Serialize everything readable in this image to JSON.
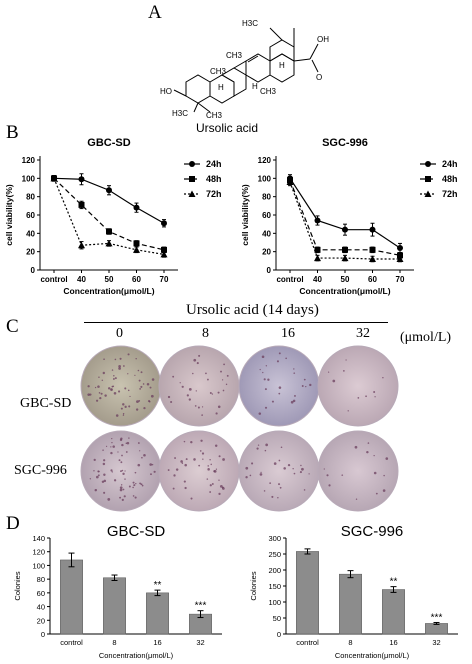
{
  "panels": {
    "a": "A",
    "b": "B",
    "c": "C",
    "d": "D"
  },
  "molecule": {
    "name": "Ursolic acid",
    "atom_labels": [
      "H3C",
      "H",
      "CH3",
      "H",
      "OH",
      "CH3",
      "H",
      "CH3",
      "HO",
      "H3C",
      "CH3",
      "O"
    ]
  },
  "colony_section": {
    "header": "Ursolic acid (14 days)",
    "unit": "(μmol/L)",
    "concentrations": [
      "0",
      "8",
      "16",
      "32"
    ],
    "rows": [
      "GBC-SD",
      "SGC-996"
    ]
  },
  "chart_data": [
    {
      "type": "line",
      "title": "GBC-SD",
      "xlabel": "Concentration(μmol/L)",
      "ylabel": "cell viability(%)",
      "categories": [
        "control",
        "40",
        "50",
        "60",
        "70"
      ],
      "ylim": [
        0,
        120
      ],
      "yticks": [
        "0",
        "20",
        "40",
        "60",
        "80",
        "100",
        "120"
      ],
      "legend": "right",
      "series": [
        {
          "name": "24h",
          "marker": "circle",
          "dash": "solid",
          "values": [
            100,
            99,
            87,
            68,
            51
          ],
          "errors": [
            3,
            6,
            5,
            5,
            4
          ]
        },
        {
          "name": "48h",
          "marker": "square",
          "dash": "dashed",
          "values": [
            100,
            71,
            42,
            29,
            22
          ],
          "errors": [
            3,
            4,
            3,
            3,
            3
          ]
        },
        {
          "name": "72h",
          "marker": "triangle",
          "dash": "dotted",
          "values": [
            100,
            27,
            29,
            22,
            17
          ],
          "errors": [
            3,
            4,
            3,
            3,
            3
          ]
        }
      ]
    },
    {
      "type": "line",
      "title": "SGC-996",
      "xlabel": "Concentration(μmol/L)",
      "ylabel": "cell viability(%)",
      "categories": [
        "control",
        "40",
        "50",
        "60",
        "70"
      ],
      "ylim": [
        0,
        120
      ],
      "yticks": [
        "0",
        "20",
        "40",
        "60",
        "80",
        "100",
        "120"
      ],
      "legend": "right",
      "series": [
        {
          "name": "24h",
          "marker": "circle",
          "dash": "solid",
          "values": [
            100,
            54,
            44,
            44,
            24
          ],
          "errors": [
            4,
            5,
            6,
            7,
            5
          ]
        },
        {
          "name": "48h",
          "marker": "square",
          "dash": "dashed",
          "values": [
            98,
            22,
            22,
            22,
            16
          ],
          "errors": [
            4,
            3,
            3,
            3,
            3
          ]
        },
        {
          "name": "72h",
          "marker": "triangle",
          "dash": "dotted",
          "values": [
            96,
            13,
            13,
            12,
            12
          ],
          "errors": [
            4,
            3,
            3,
            3,
            3
          ]
        }
      ]
    },
    {
      "type": "bar",
      "title": "GBC-SD",
      "xlabel": "Concentration(μmol/L)",
      "ylabel": "Colonies",
      "categories": [
        "control",
        "8",
        "16",
        "32"
      ],
      "values": [
        108,
        82,
        60,
        29
      ],
      "errors": [
        10,
        4,
        4,
        5
      ],
      "significance": [
        "",
        "",
        "**",
        "***"
      ],
      "ylim": [
        0,
        140
      ],
      "yticks": [
        "0",
        "20",
        "40",
        "60",
        "80",
        "100",
        "120",
        "140"
      ]
    },
    {
      "type": "bar",
      "title": "SGC-996",
      "xlabel": "Concentration(μmol/L)",
      "ylabel": "Colonies",
      "categories": [
        "control",
        "8",
        "16",
        "32"
      ],
      "values": [
        258,
        187,
        139,
        33
      ],
      "errors": [
        8,
        11,
        9,
        3
      ],
      "significance": [
        "",
        "",
        "**",
        "***"
      ],
      "ylim": [
        0,
        300
      ],
      "yticks": [
        "0",
        "50",
        "100",
        "150",
        "200",
        "250",
        "300"
      ]
    }
  ],
  "colors": {
    "bar_fill": "#8c8c8c",
    "dish_edge": "#b8aab8",
    "line": "#000000"
  }
}
